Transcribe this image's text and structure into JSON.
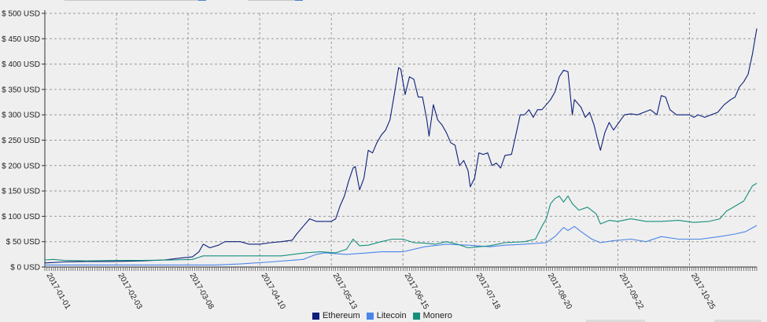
{
  "chart_data": {
    "type": "line",
    "title": "",
    "xlabel": "",
    "ylabel": "",
    "ylim": [
      0,
      500
    ],
    "y_ticks": [
      0,
      50,
      100,
      150,
      200,
      250,
      300,
      350,
      400,
      450,
      500
    ],
    "y_tick_labels": [
      "$ 0 USD",
      "$ 50 USD",
      "$ 100 USD",
      "$ 150 USD",
      "$ 200 USD",
      "$ 250 USD",
      "$ 300 USD",
      "$ 350 USD",
      "$ 400 USD",
      "$ 450 USD",
      "$ 500 USD"
    ],
    "x_tick_labels": [
      "2017-01-01",
      "2017-02-03",
      "2017-03-08",
      "2017-04-10",
      "2017-05-13",
      "2017-06-15",
      "2017-07-18",
      "2017-08-20",
      "2017-09-22",
      "2017-10-25"
    ],
    "x_range": [
      "2017-01-01",
      "2017-11-25"
    ],
    "grid": "dashed",
    "legend_position": "bottom",
    "series": [
      {
        "name": "Ethereum",
        "color": "#0d1f7a",
        "points": [
          [
            "2017-01-01",
            8
          ],
          [
            "2017-01-10",
            10
          ],
          [
            "2017-01-20",
            11
          ],
          [
            "2017-02-01",
            11
          ],
          [
            "2017-02-15",
            12
          ],
          [
            "2017-02-25",
            14
          ],
          [
            "2017-03-05",
            18
          ],
          [
            "2017-03-10",
            20
          ],
          [
            "2017-03-13",
            30
          ],
          [
            "2017-03-15",
            45
          ],
          [
            "2017-03-18",
            38
          ],
          [
            "2017-03-22",
            43
          ],
          [
            "2017-03-25",
            50
          ],
          [
            "2017-04-01",
            50
          ],
          [
            "2017-04-05",
            45
          ],
          [
            "2017-04-10",
            45
          ],
          [
            "2017-04-15",
            48
          ],
          [
            "2017-04-20",
            50
          ],
          [
            "2017-04-25",
            53
          ],
          [
            "2017-04-27",
            65
          ],
          [
            "2017-04-30",
            80
          ],
          [
            "2017-05-03",
            95
          ],
          [
            "2017-05-06",
            90
          ],
          [
            "2017-05-10",
            90
          ],
          [
            "2017-05-13",
            90
          ],
          [
            "2017-05-15",
            95
          ],
          [
            "2017-05-17",
            120
          ],
          [
            "2017-05-19",
            140
          ],
          [
            "2017-05-21",
            170
          ],
          [
            "2017-05-23",
            195
          ],
          [
            "2017-05-24",
            198
          ],
          [
            "2017-05-26",
            152
          ],
          [
            "2017-05-28",
            175
          ],
          [
            "2017-05-30",
            230
          ],
          [
            "2017-06-01",
            225
          ],
          [
            "2017-06-03",
            245
          ],
          [
            "2017-06-05",
            260
          ],
          [
            "2017-06-07",
            270
          ],
          [
            "2017-06-09",
            290
          ],
          [
            "2017-06-11",
            340
          ],
          [
            "2017-06-13",
            393
          ],
          [
            "2017-06-14",
            390
          ],
          [
            "2017-06-16",
            340
          ],
          [
            "2017-06-18",
            375
          ],
          [
            "2017-06-20",
            370
          ],
          [
            "2017-06-22",
            335
          ],
          [
            "2017-06-24",
            335
          ],
          [
            "2017-06-26",
            290
          ],
          [
            "2017-06-27",
            258
          ],
          [
            "2017-06-29",
            320
          ],
          [
            "2017-07-01",
            290
          ],
          [
            "2017-07-03",
            280
          ],
          [
            "2017-07-05",
            265
          ],
          [
            "2017-07-07",
            245
          ],
          [
            "2017-07-09",
            240
          ],
          [
            "2017-07-11",
            200
          ],
          [
            "2017-07-13",
            210
          ],
          [
            "2017-07-15",
            190
          ],
          [
            "2017-07-16",
            158
          ],
          [
            "2017-07-18",
            175
          ],
          [
            "2017-07-20",
            225
          ],
          [
            "2017-07-22",
            222
          ],
          [
            "2017-07-24",
            225
          ],
          [
            "2017-07-26",
            200
          ],
          [
            "2017-07-28",
            205
          ],
          [
            "2017-07-30",
            195
          ],
          [
            "2017-08-01",
            220
          ],
          [
            "2017-08-04",
            222
          ],
          [
            "2017-08-06",
            260
          ],
          [
            "2017-08-08",
            300
          ],
          [
            "2017-08-10",
            300
          ],
          [
            "2017-08-12",
            310
          ],
          [
            "2017-08-14",
            295
          ],
          [
            "2017-08-16",
            310
          ],
          [
            "2017-08-18",
            310
          ],
          [
            "2017-08-20",
            320
          ],
          [
            "2017-08-22",
            330
          ],
          [
            "2017-08-24",
            345
          ],
          [
            "2017-08-26",
            375
          ],
          [
            "2017-08-28",
            388
          ],
          [
            "2017-08-30",
            385
          ],
          [
            "2017-09-01",
            300
          ],
          [
            "2017-09-02",
            330
          ],
          [
            "2017-09-05",
            315
          ],
          [
            "2017-09-07",
            295
          ],
          [
            "2017-09-09",
            305
          ],
          [
            "2017-09-11",
            280
          ],
          [
            "2017-09-13",
            245
          ],
          [
            "2017-09-14",
            230
          ],
          [
            "2017-09-16",
            265
          ],
          [
            "2017-09-18",
            285
          ],
          [
            "2017-09-20",
            270
          ],
          [
            "2017-09-22",
            282
          ],
          [
            "2017-09-25",
            300
          ],
          [
            "2017-09-28",
            302
          ],
          [
            "2017-10-01",
            300
          ],
          [
            "2017-10-04",
            305
          ],
          [
            "2017-10-07",
            310
          ],
          [
            "2017-10-10",
            300
          ],
          [
            "2017-10-12",
            338
          ],
          [
            "2017-10-14",
            335
          ],
          [
            "2017-10-16",
            310
          ],
          [
            "2017-10-19",
            300
          ],
          [
            "2017-10-22",
            300
          ],
          [
            "2017-10-25",
            300
          ],
          [
            "2017-10-27",
            295
          ],
          [
            "2017-10-29",
            300
          ],
          [
            "2017-11-01",
            295
          ],
          [
            "2017-11-04",
            300
          ],
          [
            "2017-11-07",
            305
          ],
          [
            "2017-11-10",
            320
          ],
          [
            "2017-11-13",
            330
          ],
          [
            "2017-11-15",
            335
          ],
          [
            "2017-11-17",
            355
          ],
          [
            "2017-11-19",
            365
          ],
          [
            "2017-11-21",
            380
          ],
          [
            "2017-11-23",
            420
          ],
          [
            "2017-11-25",
            470
          ]
        ]
      },
      {
        "name": "Litecoin",
        "color": "#4a86e8",
        "points": [
          [
            "2017-01-01",
            4
          ],
          [
            "2017-02-01",
            4
          ],
          [
            "2017-03-01",
            4
          ],
          [
            "2017-03-20",
            4
          ],
          [
            "2017-04-01",
            6
          ],
          [
            "2017-04-15",
            10
          ],
          [
            "2017-04-30",
            15
          ],
          [
            "2017-05-06",
            25
          ],
          [
            "2017-05-10",
            28
          ],
          [
            "2017-05-20",
            25
          ],
          [
            "2017-05-30",
            28
          ],
          [
            "2017-06-05",
            30
          ],
          [
            "2017-06-15",
            30
          ],
          [
            "2017-06-25",
            40
          ],
          [
            "2017-07-05",
            45
          ],
          [
            "2017-07-15",
            43
          ],
          [
            "2017-07-25",
            40
          ],
          [
            "2017-08-01",
            43
          ],
          [
            "2017-08-10",
            45
          ],
          [
            "2017-08-20",
            48
          ],
          [
            "2017-08-24",
            60
          ],
          [
            "2017-08-28",
            78
          ],
          [
            "2017-08-30",
            72
          ],
          [
            "2017-09-02",
            80
          ],
          [
            "2017-09-05",
            70
          ],
          [
            "2017-09-10",
            55
          ],
          [
            "2017-09-14",
            48
          ],
          [
            "2017-09-20",
            52
          ],
          [
            "2017-09-28",
            55
          ],
          [
            "2017-10-05",
            50
          ],
          [
            "2017-10-12",
            60
          ],
          [
            "2017-10-20",
            55
          ],
          [
            "2017-10-30",
            55
          ],
          [
            "2017-11-08",
            60
          ],
          [
            "2017-11-15",
            65
          ],
          [
            "2017-11-20",
            70
          ],
          [
            "2017-11-25",
            82
          ]
        ]
      },
      {
        "name": "Monero",
        "color": "#168e7c",
        "points": [
          [
            "2017-01-01",
            14
          ],
          [
            "2017-01-05",
            15
          ],
          [
            "2017-01-10",
            13
          ],
          [
            "2017-01-20",
            12
          ],
          [
            "2017-02-01",
            13
          ],
          [
            "2017-02-15",
            13
          ],
          [
            "2017-03-01",
            14
          ],
          [
            "2017-03-10",
            15
          ],
          [
            "2017-03-15",
            22
          ],
          [
            "2017-03-25",
            22
          ],
          [
            "2017-04-10",
            22
          ],
          [
            "2017-04-20",
            22
          ],
          [
            "2017-05-01",
            28
          ],
          [
            "2017-05-08",
            30
          ],
          [
            "2017-05-15",
            28
          ],
          [
            "2017-05-20",
            35
          ],
          [
            "2017-05-23",
            55
          ],
          [
            "2017-05-26",
            42
          ],
          [
            "2017-05-30",
            43
          ],
          [
            "2017-06-05",
            50
          ],
          [
            "2017-06-10",
            55
          ],
          [
            "2017-06-15",
            55
          ],
          [
            "2017-06-20",
            48
          ],
          [
            "2017-06-25",
            47
          ],
          [
            "2017-06-30",
            45
          ],
          [
            "2017-07-05",
            50
          ],
          [
            "2017-07-10",
            45
          ],
          [
            "2017-07-15",
            38
          ],
          [
            "2017-07-20",
            40
          ],
          [
            "2017-07-25",
            42
          ],
          [
            "2017-08-01",
            48
          ],
          [
            "2017-08-10",
            50
          ],
          [
            "2017-08-15",
            55
          ],
          [
            "2017-08-18",
            80
          ],
          [
            "2017-08-20",
            95
          ],
          [
            "2017-08-22",
            125
          ],
          [
            "2017-08-24",
            135
          ],
          [
            "2017-08-26",
            140
          ],
          [
            "2017-08-28",
            128
          ],
          [
            "2017-08-30",
            140
          ],
          [
            "2017-09-01",
            125
          ],
          [
            "2017-09-04",
            112
          ],
          [
            "2017-09-08",
            118
          ],
          [
            "2017-09-12",
            105
          ],
          [
            "2017-09-14",
            85
          ],
          [
            "2017-09-18",
            92
          ],
          [
            "2017-09-22",
            90
          ],
          [
            "2017-09-28",
            95
          ],
          [
            "2017-10-05",
            90
          ],
          [
            "2017-10-12",
            90
          ],
          [
            "2017-10-20",
            92
          ],
          [
            "2017-10-27",
            88
          ],
          [
            "2017-11-03",
            90
          ],
          [
            "2017-11-08",
            95
          ],
          [
            "2017-11-11",
            110
          ],
          [
            "2017-11-15",
            120
          ],
          [
            "2017-11-19",
            130
          ],
          [
            "2017-11-23",
            160
          ],
          [
            "2017-11-25",
            165
          ]
        ]
      }
    ]
  }
}
